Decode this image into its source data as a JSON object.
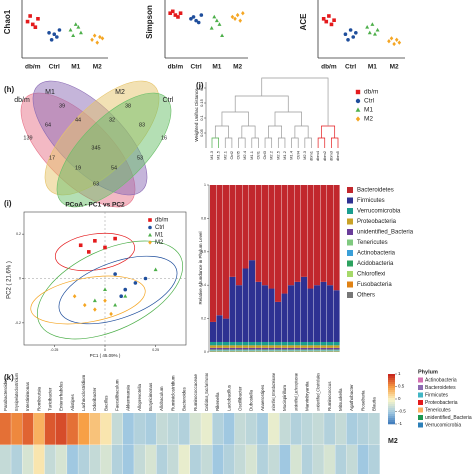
{
  "groups": [
    {
      "name": "db/m",
      "color": "#e41a1c"
    },
    {
      "name": "Ctrl",
      "color": "#1f4e9c"
    },
    {
      "name": "M1",
      "color": "#4daf4a"
    },
    {
      "name": "M2",
      "color": "#f5a623"
    }
  ],
  "top_panels": [
    {
      "ylabel": "Chao1",
      "ylim": [
        300,
        700
      ],
      "points": [
        [
          560,
          600,
          540,
          520,
          580
        ],
        [
          480,
          430,
          470,
          450,
          500
        ],
        [
          500,
          460,
          540,
          520,
          480
        ],
        [
          430,
          460,
          410,
          450,
          440
        ]
      ]
    },
    {
      "ylabel": "Simpson",
      "ylim": [
        0.85,
        1.0
      ],
      "points": [
        [
          0.97,
          0.975,
          0.965,
          0.96,
          0.97
        ],
        [
          0.955,
          0.96,
          0.95,
          0.945,
          0.965
        ],
        [
          0.93,
          0.96,
          0.95,
          0.94,
          0.91
        ],
        [
          0.96,
          0.955,
          0.965,
          0.95,
          0.97
        ]
      ]
    },
    {
      "ylabel": "ACE",
      "ylim": [
        300,
        700
      ],
      "points": [
        [
          580,
          560,
          600,
          540,
          570
        ],
        [
          470,
          430,
          500,
          450,
          480
        ],
        [
          520,
          480,
          540,
          470,
          500
        ],
        [
          420,
          440,
          400,
          430,
          410
        ]
      ]
    }
  ],
  "venn": {
    "label": "(h)",
    "sets": [
      {
        "name": "db/m",
        "color": "#e8748a"
      },
      {
        "name": "M1",
        "color": "#8b6bb5"
      },
      {
        "name": "M2",
        "color": "#e6c46a"
      },
      {
        "name": "Ctrl",
        "color": "#6abf69"
      }
    ],
    "counts": [
      139,
      39,
      38,
      16,
      64,
      44,
      83,
      32,
      345,
      17,
      53,
      19,
      54,
      63
    ]
  },
  "dendrogram": {
    "label": "(j)",
    "ylabel": "Weighted Unifrac Distance",
    "ylim": [
      0,
      0.22
    ],
    "yticks": [
      0.05,
      0.1,
      0.15,
      0.2
    ],
    "leaves": [
      {
        "name": "M1.3",
        "color": "#4daf4a"
      },
      {
        "name": "M1.5",
        "color": "#4daf4a"
      },
      {
        "name": "M2.1",
        "color": "#e0a000"
      },
      {
        "name": "Ctrl2",
        "color": "#1f4e9c"
      },
      {
        "name": "Ctrl5",
        "color": "#1f4e9c"
      },
      {
        "name": "M2.4",
        "color": "#e0a000"
      },
      {
        "name": "M1.1",
        "color": "#4daf4a"
      },
      {
        "name": "Ctrl1",
        "color": "#1f4e9c"
      },
      {
        "name": "Ctrl3",
        "color": "#1f4e9c"
      },
      {
        "name": "M2.2",
        "color": "#e0a000"
      },
      {
        "name": "M2.5",
        "color": "#e0a000"
      },
      {
        "name": "M1.2",
        "color": "#4daf4a"
      },
      {
        "name": "M1.4",
        "color": "#4daf4a"
      },
      {
        "name": "Ctrl4",
        "color": "#1f4e9c"
      },
      {
        "name": "M2.3",
        "color": "#e0a000"
      },
      {
        "name": "dbm1",
        "color": "#e41a1c"
      },
      {
        "name": "dbm4",
        "color": "#e41a1c"
      },
      {
        "name": "dbm2",
        "color": "#e41a1c"
      },
      {
        "name": "dbm3",
        "color": "#e41a1c"
      },
      {
        "name": "dbm5",
        "color": "#e41a1c"
      }
    ]
  },
  "stack": {
    "ylabel": "Relative Abundance in Phylum Level",
    "ylim": [
      0,
      1
    ],
    "yticks": [
      0,
      0.2,
      0.4,
      0.6,
      0.8,
      1
    ],
    "series": [
      {
        "name": "Bacteroidetes",
        "color": "#c1272d",
        "values": [
          0.82,
          0.78,
          0.8,
          0.55,
          0.6,
          0.5,
          0.45,
          0.58,
          0.6,
          0.62,
          0.7,
          0.65,
          0.6,
          0.58,
          0.55,
          0.62,
          0.6,
          0.58,
          0.6,
          0.63
        ]
      },
      {
        "name": "Firmicutes",
        "color": "#2e3192",
        "values": [
          0.12,
          0.16,
          0.14,
          0.39,
          0.34,
          0.44,
          0.49,
          0.36,
          0.34,
          0.32,
          0.24,
          0.29,
          0.34,
          0.36,
          0.39,
          0.32,
          0.34,
          0.36,
          0.34,
          0.31
        ]
      },
      {
        "name": "Verrucomicrobia",
        "color": "#1b9e8f",
        "values": [
          0.02,
          0.02,
          0.02,
          0.02,
          0.02,
          0.02,
          0.02,
          0.02,
          0.02,
          0.02,
          0.02,
          0.02,
          0.02,
          0.02,
          0.02,
          0.02,
          0.02,
          0.02,
          0.02,
          0.02
        ]
      },
      {
        "name": "Proteobacteria",
        "color": "#c9a227",
        "values": [
          0.015,
          0.015,
          0.015,
          0.015,
          0.015,
          0.015,
          0.015,
          0.015,
          0.015,
          0.015,
          0.015,
          0.015,
          0.015,
          0.015,
          0.015,
          0.015,
          0.015,
          0.015,
          0.015,
          0.015
        ]
      },
      {
        "name": "unidentified_Bacteria",
        "color": "#6a3d9a",
        "values": [
          0.01,
          0.01,
          0.01,
          0.01,
          0.01,
          0.01,
          0.01,
          0.01,
          0.01,
          0.01,
          0.01,
          0.01,
          0.01,
          0.01,
          0.01,
          0.01,
          0.01,
          0.01,
          0.01,
          0.01
        ]
      },
      {
        "name": "Tenericutes",
        "color": "#7fc97f",
        "values": [
          0.005,
          0.005,
          0.005,
          0.005,
          0.005,
          0.005,
          0.005,
          0.005,
          0.005,
          0.005,
          0.005,
          0.005,
          0.005,
          0.005,
          0.005,
          0.005,
          0.005,
          0.005,
          0.005,
          0.005
        ]
      },
      {
        "name": "Actinobacteria",
        "color": "#3a9fd8",
        "values": [
          0.003,
          0.003,
          0.003,
          0.003,
          0.003,
          0.003,
          0.003,
          0.003,
          0.003,
          0.003,
          0.003,
          0.003,
          0.003,
          0.003,
          0.003,
          0.003,
          0.003,
          0.003,
          0.003,
          0.003
        ]
      },
      {
        "name": "Acidobacteria",
        "color": "#2ca25f",
        "values": [
          0.002,
          0.002,
          0.002,
          0.002,
          0.002,
          0.002,
          0.002,
          0.002,
          0.002,
          0.002,
          0.002,
          0.002,
          0.002,
          0.002,
          0.002,
          0.002,
          0.002,
          0.002,
          0.002,
          0.002
        ]
      },
      {
        "name": "Chloroflexi",
        "color": "#a6d96a",
        "values": [
          0.002,
          0.002,
          0.002,
          0.002,
          0.002,
          0.002,
          0.002,
          0.002,
          0.002,
          0.002,
          0.002,
          0.002,
          0.002,
          0.002,
          0.002,
          0.002,
          0.002,
          0.002,
          0.002,
          0.002
        ]
      },
      {
        "name": "Fusobacteria",
        "color": "#e08214",
        "values": [
          0.001,
          0.001,
          0.001,
          0.001,
          0.001,
          0.001,
          0.001,
          0.001,
          0.001,
          0.001,
          0.001,
          0.001,
          0.001,
          0.001,
          0.001,
          0.001,
          0.001,
          0.001,
          0.001,
          0.001
        ]
      },
      {
        "name": "Others",
        "color": "#777777",
        "values": [
          0.002,
          0.002,
          0.002,
          0.002,
          0.002,
          0.002,
          0.002,
          0.002,
          0.002,
          0.002,
          0.002,
          0.002,
          0.002,
          0.002,
          0.002,
          0.002,
          0.002,
          0.002,
          0.002,
          0.002
        ]
      }
    ]
  },
  "pcoa": {
    "label": "(i)",
    "title": "PCoA - PC1 vs PC2",
    "xlabel": "PC1 ( 45.09% )",
    "ylabel": "PC2 ( 21.6% )",
    "xlim": [
      -0.4,
      0.4
    ],
    "ylim": [
      -0.3,
      0.3
    ],
    "xticks": [
      -0.25,
      0,
      0.25
    ],
    "yticks": [
      -0.2,
      0,
      0.2
    ],
    "points": [
      {
        "x": [
          -0.12,
          -0.05,
          0.0,
          0.05,
          -0.08
        ],
        "y": [
          0.15,
          0.17,
          0.14,
          0.18,
          0.12
        ]
      },
      {
        "x": [
          0.05,
          0.15,
          0.1,
          0.2,
          0.08
        ],
        "y": [
          0.02,
          -0.02,
          -0.05,
          0.0,
          -0.08
        ]
      },
      {
        "x": [
          0.0,
          0.05,
          0.25,
          0.1,
          -0.05
        ],
        "y": [
          -0.05,
          -0.12,
          0.04,
          -0.08,
          -0.1
        ]
      },
      {
        "x": [
          -0.1,
          -0.05,
          0.0,
          0.03,
          -0.15
        ],
        "y": [
          -0.12,
          -0.14,
          -0.1,
          -0.16,
          -0.08
        ]
      }
    ]
  },
  "heatmap": {
    "label": "(k)",
    "columns": [
      "Parabacteroides",
      "Erysipelatoclostridium",
      "Intestinimonas",
      "Romboutsia",
      "Turicibacter",
      "Enterorhabdus",
      "Alistipes",
      "Lachnoclostridium",
      "Odoribacter",
      "Bacillus",
      "Faecalibaculum",
      "Akkermansia",
      "Alloprevotella",
      "Butyricimonas",
      "Allobaculum",
      "Ruminiclostridium",
      "Bacteroides",
      "Ruminococcaceae",
      "Candidatus_Saccharimonas",
      "Rikenella",
      "Lactobacillus",
      "Oscillibacter",
      "Dubosiella",
      "Anaerostipes",
      "unidentified_Enterobacteriaceae",
      "Mucispirillum",
      "unidentified_Lachnospiraceae",
      "Marvinbryantia",
      "unidentified_Clostridiales",
      "Ruminococcus",
      "Mitsuokella",
      "Agathobacter",
      "Roseburia",
      "Blautia"
    ],
    "rows": [
      {
        "name": "M2",
        "values": [
          0.7,
          0.6,
          0.75,
          0.4,
          0.8,
          0.85,
          0.7,
          0.5,
          0.3,
          0.1,
          -0.3,
          -0.5,
          -0.4,
          -0.45,
          -0.3,
          -0.35,
          -0.4,
          -0.2,
          -0.1,
          -0.4,
          -0.5,
          -0.3,
          -0.35,
          -0.45,
          -0.1,
          -0.3,
          -0.4,
          -0.35,
          -0.3,
          -0.4,
          -0.3,
          -0.45,
          -0.4,
          -0.35
        ]
      },
      {
        "name": null,
        "values": [
          -0.3,
          -0.4,
          -0.2,
          0.1,
          -0.3,
          -0.2,
          -0.5,
          -0.4,
          -0.3,
          -0.2,
          -0.4,
          -0.5,
          -0.3,
          -0.2,
          -0.4,
          -0.3,
          -0.1,
          -0.4,
          -0.3,
          -0.5,
          -0.4,
          -0.3,
          -0.2,
          -0.4,
          -0.3,
          -0.5,
          -0.2,
          -0.4,
          -0.3,
          -0.2,
          -0.4,
          -0.3,
          -0.5,
          -0.4
        ]
      }
    ],
    "colorbar_ticks": [
      1,
      0.5,
      0,
      -0.5,
      -1
    ],
    "phylum_title": "Phylum",
    "phyla": [
      {
        "name": "Actinobacteria",
        "color": "#d36fb0"
      },
      {
        "name": "Bacteroidetes",
        "color": "#8c6bb1"
      },
      {
        "name": "Firmicutes",
        "color": "#41b6c4"
      },
      {
        "name": "Proteobacteria",
        "color": "#e31a1c"
      },
      {
        "name": "Tenericutes",
        "color": "#fdae61"
      },
      {
        "name": "unidentified_Bacteria",
        "color": "#1a9850"
      },
      {
        "name": "Verrucomicrobia",
        "color": "#2c7fb8"
      }
    ]
  }
}
